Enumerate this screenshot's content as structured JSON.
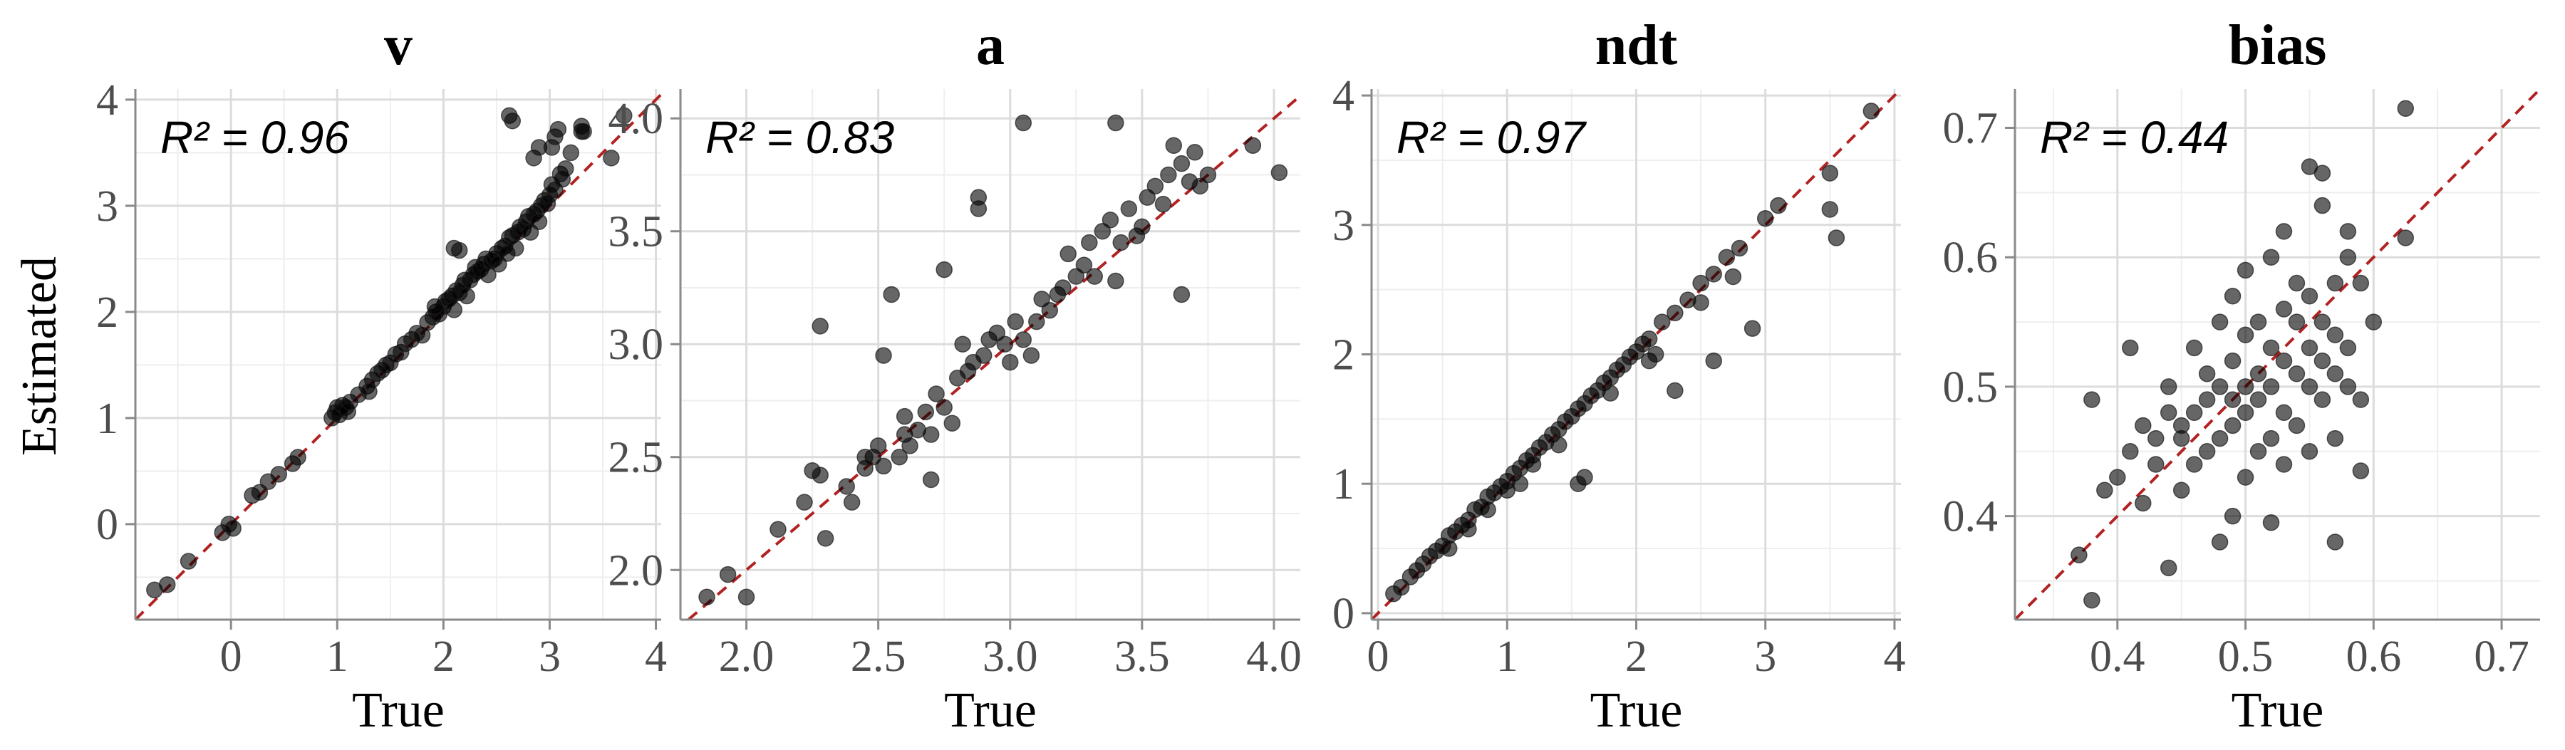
{
  "colors": {
    "points": "#000000",
    "reference_line": "#b22222",
    "grid": "#dcdcdc",
    "axis": "#8a8a8a"
  },
  "y_axis_title": "Estimated",
  "chart_data": [
    {
      "type": "scatter",
      "title": "v",
      "xlabel": "True",
      "ylabel": "Estimated",
      "annotation": "R² = 0.96",
      "xlim": [
        -0.9,
        4.05
      ],
      "ylim": [
        -0.9,
        4.1
      ],
      "xticks": [
        0,
        1,
        2,
        3,
        4
      ],
      "xtick_labels": [
        "0",
        "1",
        "2",
        "3",
        "4"
      ],
      "yticks": [
        0,
        1,
        2,
        3,
        4
      ],
      "ytick_labels": [
        "0",
        "1",
        "2",
        "3",
        "4"
      ],
      "reference_line": "y = x",
      "grid": true,
      "points": [
        [
          -0.72,
          -0.62
        ],
        [
          -0.6,
          -0.57
        ],
        [
          -0.4,
          -0.35
        ],
        [
          -0.08,
          -0.08
        ],
        [
          -0.02,
          0.0
        ],
        [
          0.02,
          -0.04
        ],
        [
          0.2,
          0.27
        ],
        [
          0.27,
          0.3
        ],
        [
          0.35,
          0.4
        ],
        [
          0.45,
          0.47
        ],
        [
          0.58,
          0.57
        ],
        [
          0.63,
          0.63
        ],
        [
          0.95,
          1.0
        ],
        [
          0.98,
          1.05
        ],
        [
          1.0,
          1.1
        ],
        [
          1.02,
          1.03
        ],
        [
          1.05,
          1.12
        ],
        [
          1.08,
          1.1
        ],
        [
          1.1,
          1.06
        ],
        [
          1.12,
          1.15
        ],
        [
          1.2,
          1.22
        ],
        [
          1.28,
          1.3
        ],
        [
          1.33,
          1.36
        ],
        [
          1.38,
          1.42
        ],
        [
          1.42,
          1.45
        ],
        [
          1.46,
          1.5
        ],
        [
          1.5,
          1.52
        ],
        [
          1.55,
          1.6
        ],
        [
          1.6,
          1.62
        ],
        [
          1.64,
          1.7
        ],
        [
          1.7,
          1.74
        ],
        [
          1.75,
          1.8
        ],
        [
          1.8,
          1.78
        ],
        [
          1.85,
          1.9
        ],
        [
          1.9,
          1.95
        ],
        [
          1.93,
          2.0
        ],
        [
          1.96,
          1.98
        ],
        [
          2.0,
          2.05
        ],
        [
          2.02,
          2.1
        ],
        [
          2.05,
          2.12
        ],
        [
          2.08,
          2.15
        ],
        [
          2.1,
          2.02
        ],
        [
          2.12,
          2.2
        ],
        [
          2.15,
          2.18
        ],
        [
          2.18,
          2.25
        ],
        [
          2.2,
          2.3
        ],
        [
          2.22,
          2.15
        ],
        [
          2.25,
          2.3
        ],
        [
          2.28,
          2.35
        ],
        [
          2.3,
          2.42
        ],
        [
          2.32,
          2.38
        ],
        [
          2.35,
          2.4
        ],
        [
          2.38,
          2.45
        ],
        [
          2.4,
          2.5
        ],
        [
          2.42,
          2.35
        ],
        [
          2.45,
          2.48
        ],
        [
          2.48,
          2.5
        ],
        [
          2.5,
          2.55
        ],
        [
          2.52,
          2.45
        ],
        [
          2.55,
          2.6
        ],
        [
          2.58,
          2.62
        ],
        [
          2.6,
          2.55
        ],
        [
          2.62,
          2.7
        ],
        [
          2.65,
          2.72
        ],
        [
          2.68,
          2.6
        ],
        [
          2.7,
          2.75
        ],
        [
          2.72,
          2.8
        ],
        [
          2.75,
          2.78
        ],
        [
          2.78,
          2.85
        ],
        [
          2.8,
          2.9
        ],
        [
          2.82,
          2.75
        ],
        [
          2.85,
          2.92
        ],
        [
          2.88,
          2.95
        ],
        [
          2.9,
          2.85
        ],
        [
          2.92,
          3.0
        ],
        [
          2.95,
          3.05
        ],
        [
          2.98,
          3.02
        ],
        [
          3.0,
          3.1
        ],
        [
          3.02,
          3.2
        ],
        [
          3.05,
          3.15
        ],
        [
          3.1,
          3.3
        ],
        [
          3.12,
          3.25
        ],
        [
          3.15,
          3.35
        ],
        [
          3.2,
          3.5
        ],
        [
          3.3,
          3.7
        ],
        [
          2.62,
          3.85
        ],
        [
          2.65,
          3.8
        ],
        [
          2.85,
          3.45
        ],
        [
          2.9,
          3.55
        ],
        [
          3.02,
          3.55
        ],
        [
          3.05,
          3.65
        ],
        [
          3.08,
          3.72
        ],
        [
          3.3,
          3.75
        ],
        [
          3.32,
          3.7
        ],
        [
          3.58,
          3.45
        ],
        [
          3.7,
          3.85
        ],
        [
          2.1,
          2.6
        ],
        [
          2.15,
          2.58
        ],
        [
          1.92,
          2.05
        ],
        [
          1.3,
          1.25
        ]
      ]
    },
    {
      "type": "scatter",
      "title": "a",
      "xlabel": "True",
      "annotation": "R² = 0.83",
      "xlim": [
        1.75,
        4.1
      ],
      "ylim": [
        1.78,
        4.13
      ],
      "xticks": [
        2.0,
        2.5,
        3.0,
        3.5,
        4.0
      ],
      "xtick_labels": [
        "2.0",
        "2.5",
        "3.0",
        "3.5",
        "4.0"
      ],
      "yticks": [
        2.0,
        2.5,
        3.0,
        3.5,
        4.0
      ],
      "ytick_labels": [
        "2.0",
        "2.5",
        "3.0",
        "3.5",
        "4.0"
      ],
      "reference_line": "y = x",
      "grid": true,
      "points": [
        [
          1.85,
          1.88
        ],
        [
          1.93,
          1.98
        ],
        [
          2.0,
          1.88
        ],
        [
          2.12,
          2.18
        ],
        [
          2.22,
          2.3
        ],
        [
          2.25,
          2.44
        ],
        [
          2.28,
          2.42
        ],
        [
          2.28,
          3.08
        ],
        [
          2.3,
          2.14
        ],
        [
          2.38,
          2.37
        ],
        [
          2.4,
          2.3
        ],
        [
          2.45,
          2.45
        ],
        [
          2.48,
          2.5
        ],
        [
          2.5,
          2.55
        ],
        [
          2.52,
          2.95
        ],
        [
          2.55,
          3.22
        ],
        [
          2.52,
          2.46
        ],
        [
          2.58,
          2.5
        ],
        [
          2.6,
          2.6
        ],
        [
          2.62,
          2.55
        ],
        [
          2.65,
          2.62
        ],
        [
          2.68,
          2.7
        ],
        [
          2.7,
          2.6
        ],
        [
          2.72,
          2.78
        ],
        [
          2.75,
          2.72
        ],
        [
          2.78,
          2.65
        ],
        [
          2.8,
          2.85
        ],
        [
          2.82,
          3.0
        ],
        [
          2.84,
          2.88
        ],
        [
          2.86,
          2.92
        ],
        [
          2.88,
          3.6
        ],
        [
          2.88,
          3.65
        ],
        [
          2.9,
          2.95
        ],
        [
          2.92,
          3.02
        ],
        [
          2.95,
          3.05
        ],
        [
          2.98,
          3.0
        ],
        [
          3.0,
          2.92
        ],
        [
          3.02,
          3.1
        ],
        [
          3.05,
          3.98
        ],
        [
          3.05,
          3.02
        ],
        [
          3.08,
          2.95
        ],
        [
          3.1,
          3.1
        ],
        [
          3.12,
          3.2
        ],
        [
          3.15,
          3.15
        ],
        [
          3.18,
          3.22
        ],
        [
          3.2,
          3.25
        ],
        [
          3.22,
          3.4
        ],
        [
          3.25,
          3.3
        ],
        [
          3.28,
          3.35
        ],
        [
          3.3,
          3.45
        ],
        [
          3.32,
          3.3
        ],
        [
          3.35,
          3.5
        ],
        [
          3.38,
          3.55
        ],
        [
          3.4,
          3.98
        ],
        [
          3.42,
          3.45
        ],
        [
          3.45,
          3.6
        ],
        [
          3.48,
          3.48
        ],
        [
          3.5,
          3.52
        ],
        [
          3.52,
          3.65
        ],
        [
          3.55,
          3.7
        ],
        [
          3.58,
          3.62
        ],
        [
          3.6,
          3.75
        ],
        [
          3.62,
          3.88
        ],
        [
          3.65,
          3.8
        ],
        [
          3.68,
          3.72
        ],
        [
          3.7,
          3.85
        ],
        [
          3.72,
          3.7
        ],
        [
          3.75,
          3.75
        ],
        [
          3.92,
          3.88
        ],
        [
          4.02,
          3.76
        ],
        [
          2.7,
          2.4
        ],
        [
          2.75,
          3.33
        ],
        [
          2.6,
          2.68
        ],
        [
          2.45,
          2.5
        ],
        [
          3.65,
          3.22
        ],
        [
          3.4,
          3.28
        ]
      ]
    },
    {
      "type": "scatter",
      "title": "ndt",
      "xlabel": "True",
      "annotation": "R² = 0.97",
      "xlim": [
        -0.05,
        4.05
      ],
      "ylim": [
        -0.05,
        4.05
      ],
      "xticks": [
        0,
        1,
        2,
        3,
        4
      ],
      "xtick_labels": [
        "0",
        "1",
        "2",
        "3",
        "4"
      ],
      "yticks": [
        0,
        1,
        2,
        3,
        4
      ],
      "ytick_labels": [
        "0",
        "1",
        "2",
        "3",
        "4"
      ],
      "reference_line": "y = x",
      "grid": true,
      "points": [
        [
          0.12,
          0.15
        ],
        [
          0.18,
          0.2
        ],
        [
          0.25,
          0.28
        ],
        [
          0.3,
          0.33
        ],
        [
          0.35,
          0.38
        ],
        [
          0.4,
          0.44
        ],
        [
          0.45,
          0.48
        ],
        [
          0.5,
          0.52
        ],
        [
          0.55,
          0.6
        ],
        [
          0.6,
          0.63
        ],
        [
          0.65,
          0.68
        ],
        [
          0.7,
          0.72
        ],
        [
          0.75,
          0.8
        ],
        [
          0.8,
          0.82
        ],
        [
          0.85,
          0.9
        ],
        [
          0.9,
          0.93
        ],
        [
          0.95,
          0.98
        ],
        [
          1.0,
          1.02
        ],
        [
          1.05,
          1.08
        ],
        [
          1.1,
          1.12
        ],
        [
          1.15,
          1.18
        ],
        [
          1.2,
          1.22
        ],
        [
          1.25,
          1.28
        ],
        [
          1.3,
          1.32
        ],
        [
          1.35,
          1.38
        ],
        [
          1.4,
          1.42
        ],
        [
          1.45,
          1.48
        ],
        [
          1.5,
          1.52
        ],
        [
          1.55,
          1.58
        ],
        [
          1.6,
          1.62
        ],
        [
          1.65,
          1.68
        ],
        [
          1.7,
          1.72
        ],
        [
          1.75,
          1.78
        ],
        [
          1.8,
          1.82
        ],
        [
          1.85,
          1.88
        ],
        [
          1.9,
          1.92
        ],
        [
          1.95,
          1.98
        ],
        [
          2.0,
          2.02
        ],
        [
          2.05,
          2.08
        ],
        [
          2.1,
          2.12
        ],
        [
          2.2,
          2.25
        ],
        [
          2.3,
          2.32
        ],
        [
          2.4,
          2.42
        ],
        [
          2.5,
          2.55
        ],
        [
          2.6,
          2.62
        ],
        [
          2.7,
          2.75
        ],
        [
          2.8,
          2.82
        ],
        [
          3.0,
          3.05
        ],
        [
          3.1,
          3.15
        ],
        [
          3.5,
          3.4
        ],
        [
          3.55,
          2.9
        ],
        [
          3.5,
          3.12
        ],
        [
          3.82,
          3.88
        ],
        [
          0.55,
          0.5
        ],
        [
          1.0,
          0.95
        ],
        [
          1.2,
          1.15
        ],
        [
          1.6,
          1.05
        ],
        [
          1.55,
          1.0
        ],
        [
          1.8,
          1.7
        ],
        [
          2.1,
          1.95
        ],
        [
          2.3,
          1.72
        ],
        [
          2.6,
          1.95
        ],
        [
          2.9,
          2.2
        ],
        [
          2.15,
          2.0
        ],
        [
          1.4,
          1.3
        ],
        [
          0.85,
          0.8
        ],
        [
          0.7,
          0.65
        ],
        [
          2.5,
          2.4
        ],
        [
          2.75,
          2.6
        ],
        [
          1.1,
          1.0
        ]
      ]
    },
    {
      "type": "scatter",
      "title": "bias",
      "xlabel": "True",
      "annotation": "R² = 0.44",
      "xlim": [
        0.32,
        0.73
      ],
      "ylim": [
        0.32,
        0.73
      ],
      "xticks": [
        0.4,
        0.5,
        0.6,
        0.7
      ],
      "xtick_labels": [
        "0.4",
        "0.5",
        "0.6",
        "0.7"
      ],
      "yticks": [
        0.4,
        0.5,
        0.6,
        0.7
      ],
      "ytick_labels": [
        "0.4",
        "0.5",
        "0.6",
        "0.7"
      ],
      "reference_line": "y = x",
      "grid": true,
      "points": [
        [
          0.37,
          0.37
        ],
        [
          0.38,
          0.335
        ],
        [
          0.38,
          0.49
        ],
        [
          0.39,
          0.42
        ],
        [
          0.4,
          0.43
        ],
        [
          0.41,
          0.45
        ],
        [
          0.41,
          0.53
        ],
        [
          0.42,
          0.41
        ],
        [
          0.42,
          0.47
        ],
        [
          0.43,
          0.44
        ],
        [
          0.43,
          0.46
        ],
        [
          0.44,
          0.36
        ],
        [
          0.44,
          0.48
        ],
        [
          0.44,
          0.5
        ],
        [
          0.45,
          0.42
        ],
        [
          0.45,
          0.46
        ],
        [
          0.45,
          0.47
        ],
        [
          0.46,
          0.44
        ],
        [
          0.46,
          0.48
        ],
        [
          0.46,
          0.53
        ],
        [
          0.47,
          0.45
        ],
        [
          0.47,
          0.49
        ],
        [
          0.47,
          0.51
        ],
        [
          0.48,
          0.38
        ],
        [
          0.48,
          0.46
        ],
        [
          0.48,
          0.5
        ],
        [
          0.48,
          0.55
        ],
        [
          0.49,
          0.4
        ],
        [
          0.49,
          0.47
        ],
        [
          0.49,
          0.49
        ],
        [
          0.49,
          0.52
        ],
        [
          0.49,
          0.57
        ],
        [
          0.5,
          0.43
        ],
        [
          0.5,
          0.48
        ],
        [
          0.5,
          0.5
        ],
        [
          0.5,
          0.54
        ],
        [
          0.5,
          0.59
        ],
        [
          0.51,
          0.45
        ],
        [
          0.51,
          0.49
        ],
        [
          0.51,
          0.51
        ],
        [
          0.51,
          0.55
        ],
        [
          0.52,
          0.46
        ],
        [
          0.52,
          0.5
        ],
        [
          0.52,
          0.53
        ],
        [
          0.52,
          0.6
        ],
        [
          0.53,
          0.44
        ],
        [
          0.53,
          0.48
        ],
        [
          0.53,
          0.52
        ],
        [
          0.53,
          0.56
        ],
        [
          0.53,
          0.62
        ],
        [
          0.54,
          0.47
        ],
        [
          0.54,
          0.51
        ],
        [
          0.54,
          0.55
        ],
        [
          0.54,
          0.58
        ],
        [
          0.55,
          0.45
        ],
        [
          0.55,
          0.5
        ],
        [
          0.55,
          0.53
        ],
        [
          0.55,
          0.57
        ],
        [
          0.55,
          0.67
        ],
        [
          0.56,
          0.49
        ],
        [
          0.56,
          0.52
        ],
        [
          0.56,
          0.55
        ],
        [
          0.56,
          0.64
        ],
        [
          0.56,
          0.665
        ],
        [
          0.57,
          0.46
        ],
        [
          0.57,
          0.51
        ],
        [
          0.57,
          0.54
        ],
        [
          0.57,
          0.58
        ],
        [
          0.57,
          0.38
        ],
        [
          0.58,
          0.5
        ],
        [
          0.58,
          0.53
        ],
        [
          0.58,
          0.6
        ],
        [
          0.58,
          0.62
        ],
        [
          0.59,
          0.49
        ],
        [
          0.59,
          0.58
        ],
        [
          0.59,
          0.435
        ],
        [
          0.6,
          0.55
        ],
        [
          0.625,
          0.615
        ],
        [
          0.625,
          0.715
        ],
        [
          0.52,
          0.395
        ]
      ]
    }
  ]
}
